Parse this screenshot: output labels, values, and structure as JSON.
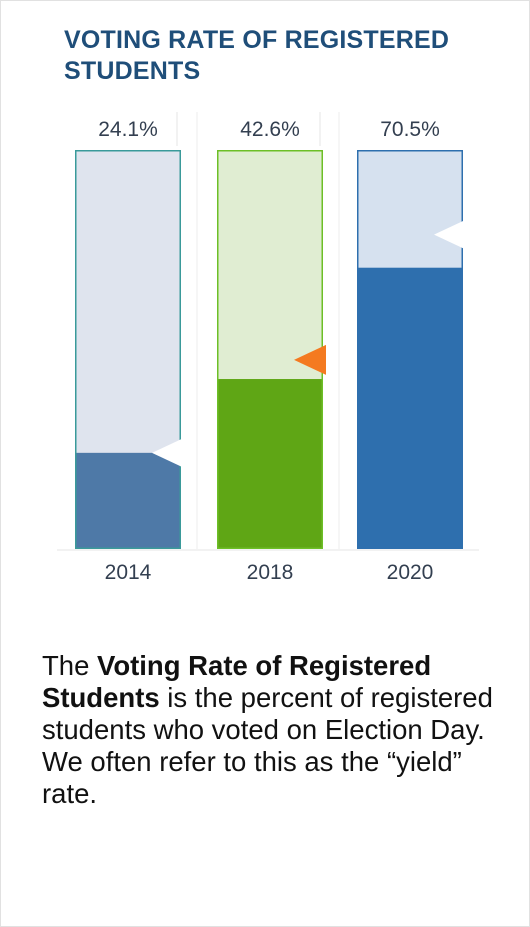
{
  "chart_data": {
    "type": "bar",
    "title": "VOTING RATE OF REGISTERED STUDENTS",
    "categories": [
      "2014",
      "2018",
      "2020"
    ],
    "values": [
      24.1,
      42.6,
      70.5
    ],
    "value_labels": [
      "24.1%",
      "42.6%",
      "70.5%"
    ],
    "unit": "%",
    "ylim": [
      0,
      100
    ],
    "reference_markers": [
      24.1,
      47.4,
      78.8
    ],
    "reference_marker_colors": [
      "#ffffff",
      "#f47a20",
      "#ffffff"
    ],
    "bar_colors": [
      "#4e79a7",
      "#5fa615",
      "#2e6fae"
    ],
    "bar_background_colors": [
      "#dfe4ee",
      "#e0edd2",
      "#d6e1ef"
    ],
    "bar_border_colors": [
      "#3a9a9a",
      "#6dbf27",
      "#2e6fae"
    ],
    "xlabel": "",
    "ylabel": "",
    "grid": false,
    "legend": "none"
  },
  "description": {
    "lead": "The ",
    "bold": "Voting Rate of Registered Students",
    "rest": " is the percent of registered students who voted on Election Day. We often refer to this as the “yield” rate."
  },
  "colors": {
    "title": "#1f4e79",
    "label_text": "#333f50",
    "tick_text": "#333f50"
  }
}
